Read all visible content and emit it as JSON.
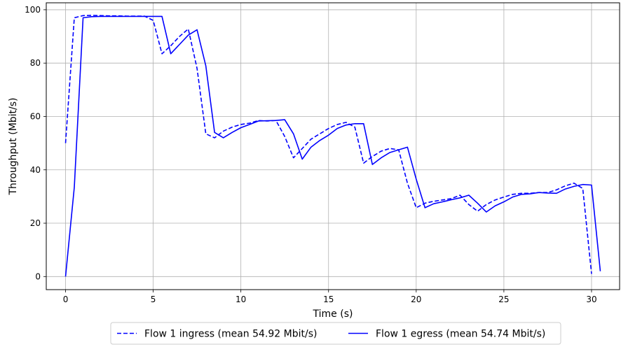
{
  "chart_data": {
    "type": "line",
    "xlabel": "Time (s)",
    "ylabel": "Throughput (Mbit/s)",
    "xlim": [
      -1.1,
      31.6
    ],
    "ylim": [
      -4.9,
      102.6
    ],
    "xticks": [
      0,
      5,
      10,
      15,
      20,
      25,
      30
    ],
    "yticks": [
      0,
      20,
      40,
      60,
      80,
      100
    ],
    "grid": true,
    "legend_position": "bottom-center, outside plot",
    "series": [
      {
        "name": "Flow 1 ingress (mean 54.92 Mbit/s)",
        "style": "dashed",
        "color": "#0000ff",
        "x": [
          0.0,
          0.5,
          1.0,
          1.5,
          2.0,
          2.5,
          3.0,
          3.5,
          4.0,
          4.5,
          5.0,
          5.5,
          6.0,
          6.5,
          7.0,
          7.5,
          8.0,
          8.5,
          9.0,
          9.5,
          10.0,
          10.5,
          11.0,
          11.5,
          12.0,
          12.5,
          13.0,
          13.5,
          14.0,
          14.5,
          15.0,
          15.5,
          16.0,
          16.5,
          17.0,
          17.5,
          18.0,
          18.5,
          19.0,
          19.5,
          20.0,
          20.5,
          21.0,
          21.5,
          22.0,
          22.5,
          23.0,
          23.5,
          24.0,
          24.5,
          25.0,
          25.5,
          26.0,
          26.5,
          27.0,
          27.5,
          28.0,
          28.5,
          29.0,
          29.5,
          30.0
        ],
        "values": [
          50.0,
          97.0,
          97.8,
          97.9,
          97.8,
          97.7,
          97.7,
          97.6,
          97.6,
          97.6,
          96.0,
          83.5,
          86.5,
          90.0,
          92.8,
          78.0,
          53.5,
          52.0,
          54.5,
          56.0,
          57.0,
          57.5,
          58.5,
          58.3,
          58.5,
          52.5,
          44.5,
          48.0,
          51.5,
          53.5,
          55.5,
          57.0,
          57.8,
          56.0,
          42.5,
          45.0,
          47.0,
          48.0,
          47.5,
          35.0,
          25.8,
          27.5,
          28.2,
          28.7,
          29.2,
          30.5,
          27.0,
          24.5,
          27.0,
          28.7,
          29.8,
          30.8,
          31.2,
          31.2,
          31.5,
          31.5,
          32.5,
          34.0,
          35.0,
          33.0,
          1.0
        ]
      },
      {
        "name": "Flow 1 egress (mean 54.74 Mbit/s)",
        "style": "solid",
        "color": "#0000ff",
        "x": [
          0.0,
          0.5,
          1.0,
          1.5,
          2.0,
          2.5,
          3.0,
          3.5,
          4.0,
          4.5,
          5.0,
          5.5,
          6.0,
          6.5,
          7.0,
          7.5,
          8.0,
          8.5,
          9.0,
          9.5,
          10.0,
          10.5,
          11.0,
          11.5,
          12.0,
          12.5,
          13.0,
          13.5,
          14.0,
          14.5,
          15.0,
          15.5,
          16.0,
          16.5,
          17.0,
          17.5,
          18.0,
          18.5,
          19.0,
          19.5,
          20.0,
          20.5,
          21.0,
          21.5,
          22.0,
          22.5,
          23.0,
          23.5,
          24.0,
          24.5,
          25.0,
          25.5,
          26.0,
          26.5,
          27.0,
          27.5,
          28.0,
          28.5,
          29.0,
          29.5,
          30.0,
          30.5
        ],
        "values": [
          0.0,
          33.5,
          97.0,
          97.4,
          97.5,
          97.5,
          97.5,
          97.5,
          97.5,
          97.5,
          97.5,
          97.5,
          83.5,
          87.0,
          90.5,
          92.5,
          79.0,
          54.0,
          52.0,
          54.0,
          55.8,
          57.0,
          58.3,
          58.4,
          58.5,
          58.8,
          53.5,
          44.0,
          48.5,
          51.0,
          53.0,
          55.5,
          56.8,
          57.3,
          57.3,
          42.0,
          44.5,
          46.5,
          47.5,
          48.5,
          36.5,
          25.8,
          27.3,
          28.0,
          28.8,
          29.5,
          30.5,
          27.5,
          24.2,
          26.5,
          28.0,
          29.8,
          30.8,
          31.0,
          31.5,
          31.3,
          31.2,
          32.8,
          33.8,
          34.5,
          34.3,
          2.0
        ]
      }
    ]
  }
}
